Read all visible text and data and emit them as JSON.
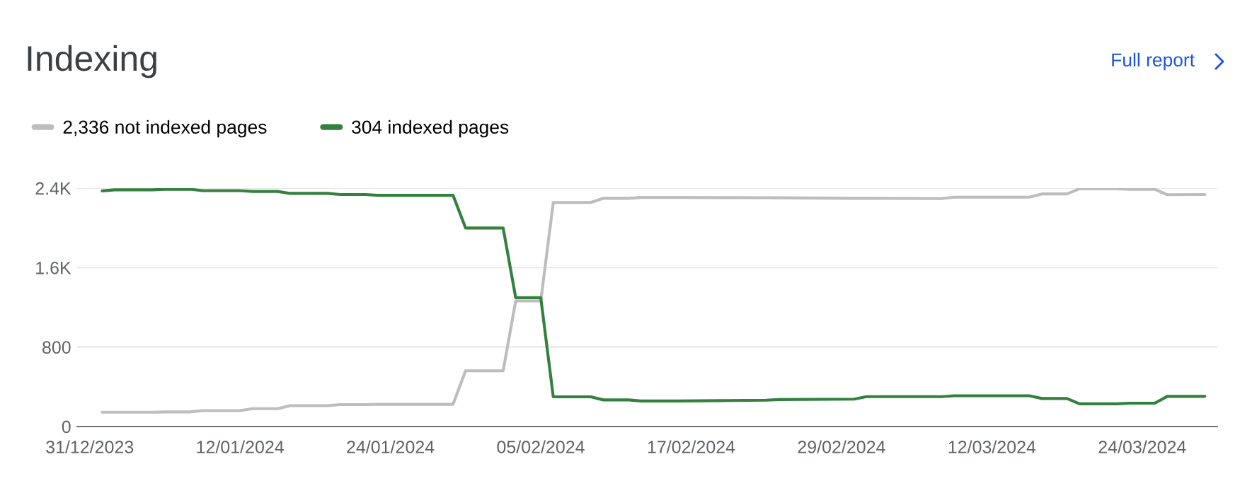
{
  "chart_data": {
    "type": "line",
    "title": "Indexing",
    "annotations": [
      "Full report"
    ],
    "x": [
      "2024-01-01",
      "2024-01-02",
      "2024-01-05",
      "2024-01-06",
      "2024-01-08",
      "2024-01-09",
      "2024-01-12",
      "2024-01-13",
      "2024-01-15",
      "2024-01-16",
      "2024-01-19",
      "2024-01-20",
      "2024-01-22",
      "2024-01-23",
      "2024-01-29",
      "2024-01-30",
      "2024-02-02",
      "2024-02-03",
      "2024-02-05",
      "2024-02-06",
      "2024-02-09",
      "2024-02-10",
      "2024-02-12",
      "2024-02-13",
      "2024-02-16",
      "2024-02-20",
      "2024-02-23",
      "2024-02-24",
      "2024-03-01",
      "2024-03-02",
      "2024-03-08",
      "2024-03-09",
      "2024-03-15",
      "2024-03-16",
      "2024-03-18",
      "2024-03-19",
      "2024-03-22",
      "2024-03-23",
      "2024-03-25",
      "2024-03-26",
      "2024-03-29"
    ],
    "series": [
      {
        "name": "2,336 not indexed pages",
        "color": "#bdbdbd",
        "values": [
          144,
          144,
          144,
          147,
          147,
          160,
          160,
          180,
          180,
          210,
          210,
          221,
          221,
          224,
          224,
          561,
          561,
          1264,
          1264,
          2256,
          2256,
          2298,
          2298,
          2306,
          2306,
          2305,
          2304,
          2303,
          2298,
          2298,
          2295,
          2309,
          2309,
          2342,
          2342,
          2394,
          2394,
          2389,
          2389,
          2334,
          2336
        ]
      },
      {
        "name": "304 indexed pages",
        "color": "#34803f",
        "values": [
          2372,
          2383,
          2383,
          2389,
          2389,
          2375,
          2375,
          2367,
          2367,
          2347,
          2347,
          2336,
          2336,
          2328,
          2328,
          1999,
          1999,
          1297,
          1297,
          299,
          299,
          268,
          268,
          257,
          257,
          262,
          265,
          271,
          276,
          301,
          301,
          310,
          310,
          282,
          282,
          229,
          229,
          235,
          235,
          304,
          304
        ]
      }
    ],
    "xlim": [
      "2023-12-30",
      "2024-03-30"
    ],
    "xticks": [
      {
        "value": "2023-12-31",
        "label": "31/12/2023"
      },
      {
        "value": "2024-01-12",
        "label": "12/01/2024"
      },
      {
        "value": "2024-01-24",
        "label": "24/01/2024"
      },
      {
        "value": "2024-02-05",
        "label": "05/02/2024"
      },
      {
        "value": "2024-02-17",
        "label": "17/02/2024"
      },
      {
        "value": "2024-02-29",
        "label": "29/02/2024"
      },
      {
        "value": "2024-03-12",
        "label": "12/03/2024"
      },
      {
        "value": "2024-03-24",
        "label": "24/03/2024"
      }
    ],
    "ylim": [
      0,
      2400
    ],
    "yticks": [
      0,
      800,
      {
        "value": 1600,
        "label": "1.6K"
      },
      {
        "value": 2400,
        "label": "2.4K"
      }
    ],
    "grid": "y",
    "legend": "top left",
    "line_style": "solid"
  }
}
